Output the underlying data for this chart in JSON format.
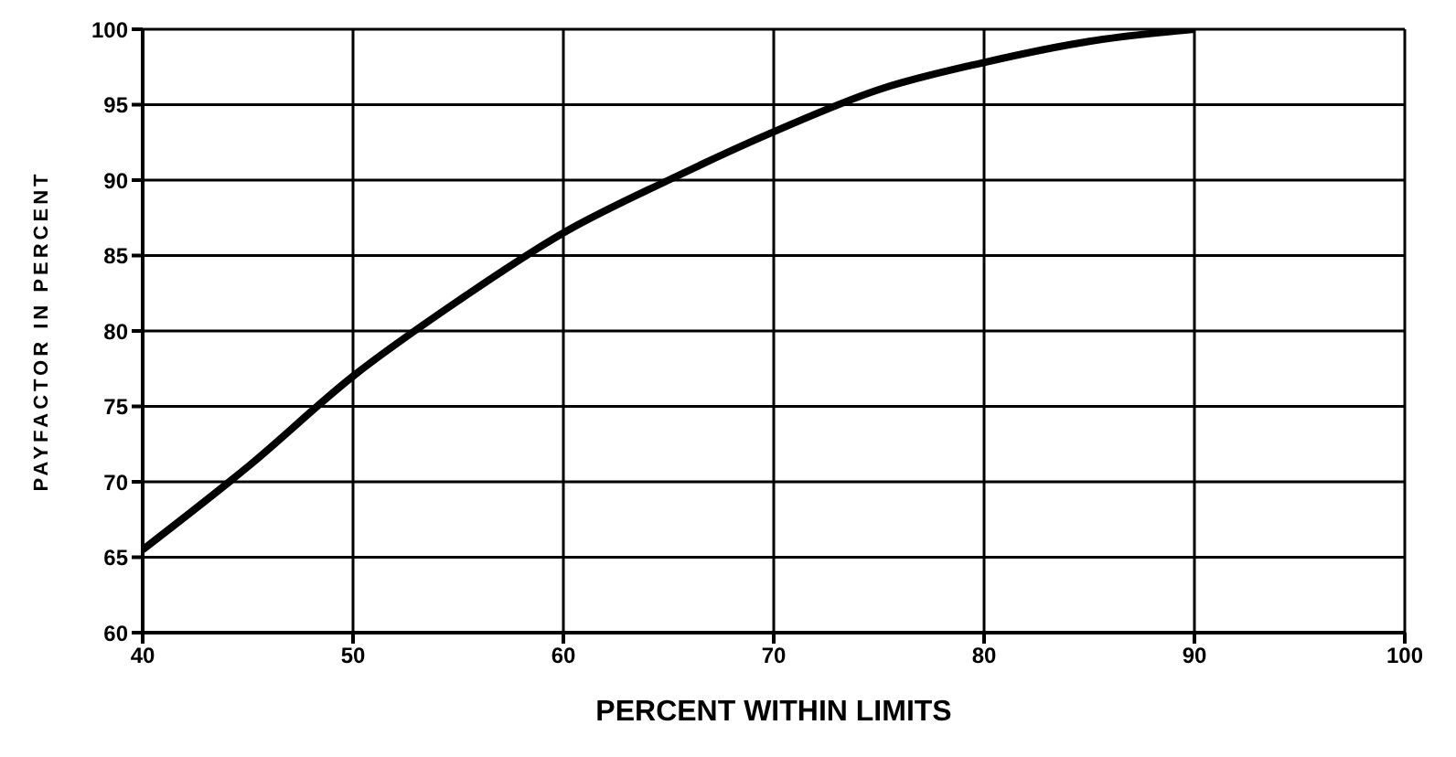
{
  "chart_data": {
    "type": "line",
    "xlabel": "PERCENT WITHIN LIMITS",
    "ylabel": "PAYFACTOR IN PERCENT",
    "x": [
      40,
      45,
      50,
      55,
      60,
      65,
      70,
      75,
      80,
      85,
      90
    ],
    "series": [
      {
        "color": "#000000",
        "values": [
          65.5,
          71,
          77,
          82,
          86.5,
          90,
          93.2,
          96,
          97.8,
          99.2,
          100
        ]
      }
    ],
    "xlim": [
      40,
      100
    ],
    "xticks": [
      40,
      50,
      60,
      70,
      80,
      90,
      100
    ],
    "ylim": [
      60,
      100
    ],
    "yticks": [
      60,
      65,
      70,
      75,
      80,
      85,
      90,
      95,
      100
    ],
    "grid": true,
    "legend": false,
    "marker": "none",
    "line_style": "solid"
  }
}
